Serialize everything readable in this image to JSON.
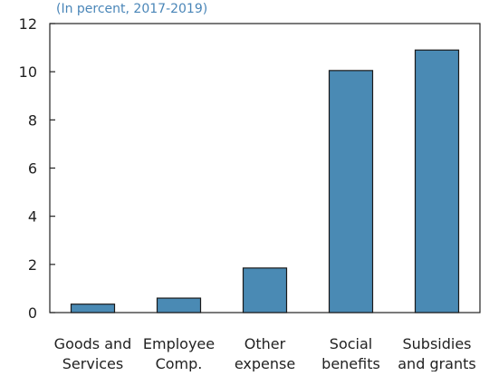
{
  "chart_data": {
    "type": "bar",
    "title": "",
    "subtitle": "(In percent, 2017-2019)",
    "xlabel": "",
    "ylabel": "",
    "categories": [
      [
        "Goods and",
        "Services"
      ],
      [
        "Employee",
        "Comp."
      ],
      [
        "Other",
        "expense"
      ],
      [
        "Social",
        "benefits"
      ],
      [
        "Subsidies",
        "and grants"
      ]
    ],
    "values": [
      0.35,
      0.6,
      1.85,
      10.05,
      10.9
    ],
    "ylim": [
      0,
      12
    ],
    "yticks": [
      "0",
      "2",
      "4",
      "6",
      "8",
      "10",
      "12"
    ],
    "grid": false,
    "legend": "none",
    "colors": {
      "bar_fill": "#4a8ab4",
      "bar_stroke": "#1a1a1a",
      "axis": "#222222",
      "subtitle": "#4a86b8"
    }
  }
}
